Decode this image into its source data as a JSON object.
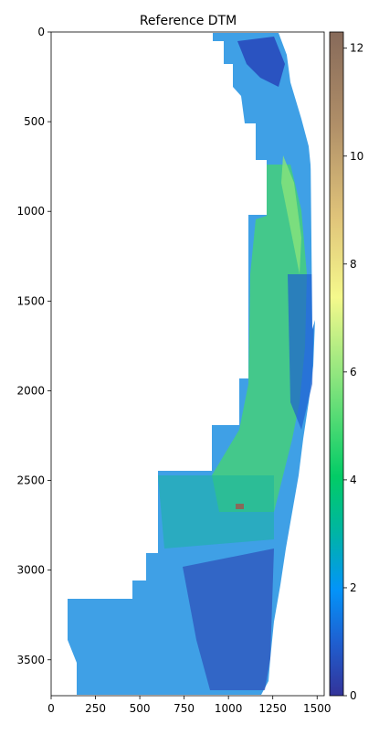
{
  "chart_data": {
    "type": "heatmap",
    "title": "Reference DTM",
    "xlabel": "",
    "ylabel": "",
    "xlim": [
      0,
      1540
    ],
    "ylim": [
      3700,
      0
    ],
    "x_ticks": [
      0,
      250,
      500,
      750,
      1000,
      1250,
      1500
    ],
    "y_ticks": [
      0,
      500,
      1000,
      1500,
      2000,
      2500,
      3000,
      3500
    ],
    "grid": false,
    "colorbar": {
      "colormap": "terrain",
      "range": [
        0,
        12.3
      ],
      "ticks": [
        0,
        2,
        4,
        6,
        8,
        10,
        12
      ]
    },
    "nodata_color": "#ffffff"
  }
}
